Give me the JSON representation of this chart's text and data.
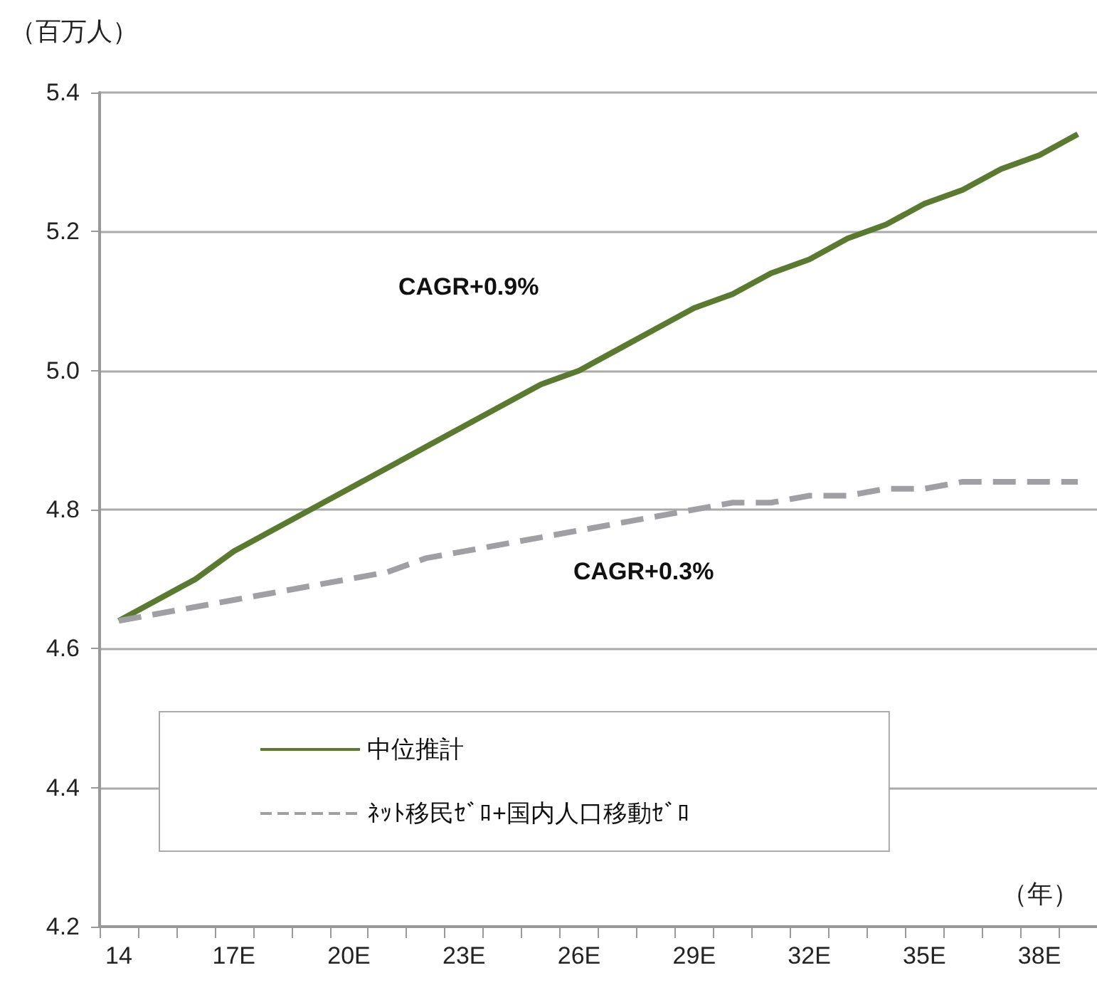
{
  "chart_data": {
    "type": "line",
    "ylabel": "（百万人）",
    "xlabel": "（年）",
    "categories": [
      "14",
      null,
      null,
      "17E",
      null,
      null,
      "20E",
      null,
      null,
      "23E",
      null,
      null,
      "26E",
      null,
      null,
      "29E",
      null,
      null,
      "32E",
      null,
      null,
      "35E",
      null,
      null,
      "38E",
      null
    ],
    "series": [
      {
        "name": "中位推計",
        "color": "#5a7a30",
        "line_style": "solid",
        "values": [
          4.64,
          4.67,
          4.7,
          4.74,
          4.77,
          4.8,
          4.83,
          4.86,
          4.89,
          4.92,
          4.95,
          4.98,
          5.0,
          5.03,
          5.06,
          5.09,
          5.11,
          5.14,
          5.16,
          5.19,
          5.21,
          5.24,
          5.26,
          5.29,
          5.31,
          5.34
        ]
      },
      {
        "name": "ﾈｯﾄ移民ｾﾞﾛ+国内人口移動ｾﾞﾛ",
        "color": "#a0a0a4",
        "line_style": "dashed",
        "values": [
          4.64,
          4.65,
          4.66,
          4.67,
          4.68,
          4.69,
          4.7,
          4.71,
          4.73,
          4.74,
          4.75,
          4.76,
          4.77,
          4.78,
          4.79,
          4.8,
          4.81,
          4.81,
          4.82,
          4.82,
          4.83,
          4.83,
          4.84,
          4.84,
          4.84,
          4.84
        ]
      }
    ],
    "ylim": [
      4.2,
      5.4
    ],
    "yticks": [
      4.2,
      4.4,
      4.6,
      4.8,
      {
        "value": 5,
        "label": "5.0"
      },
      5.2,
      5.4
    ],
    "grid": "y",
    "legend": "bottom left",
    "marker": "none",
    "annotations": [
      "CAGR+0.9%",
      "CAGR+0.3%"
    ]
  }
}
